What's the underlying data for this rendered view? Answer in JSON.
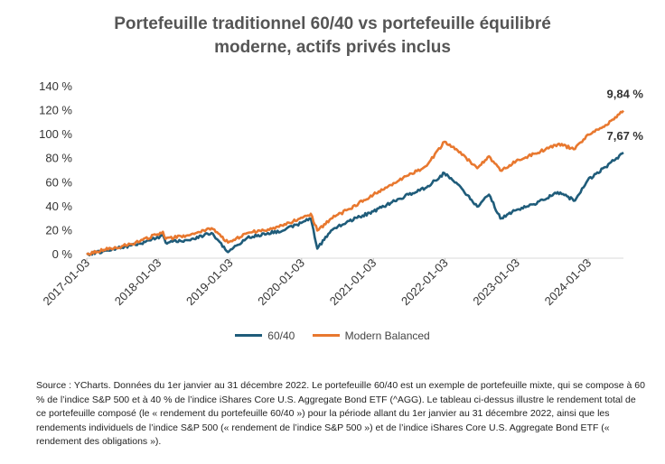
{
  "title_line1": "Portefeuille traditionnel 60/40 vs portefeuille équilibré",
  "title_line2": "moderne, actifs privés inclus",
  "source_note": "Source : YCharts. Données du 1er janvier au 31 décembre 2022. Le portefeuille 60/40 est un exemple de portefeuille mixte, qui se compose à 60 % de l’indice S&P 500 et à 40 % de l’indice iShares Core U.S. Aggregate Bond ETF (^AGG). Le tableau ci-dessus illustre le rendement total de ce portefeuille composé (le « rendement du portefeuille 60/40 ») pour la période allant du 1er janvier au 31 décembre 2022, ainsi que les rendements individuels de l’indice S&P 500 (« rendement de l’indice S&P 500 ») et de l’indice iShares Core U.S. Aggregate Bond ETF (« rendement des obligations »).",
  "chart_data": {
    "type": "line",
    "x_ticks": [
      "2017-01-03",
      "2018-01-03",
      "2019-01-03",
      "2020-01-03",
      "2021-01-03",
      "2022-01-03",
      "2023-01-03",
      "2024-01-03"
    ],
    "y_ticks": [
      "0 %",
      "20 %",
      "40 %",
      "60 %",
      "80 %",
      "100 %",
      "120 %",
      "140 %"
    ],
    "ylim": [
      0,
      140
    ],
    "xlim": [
      "2017-01-03",
      "2024-06-30"
    ],
    "legend_position": "bottom",
    "grid": false,
    "end_labels": [
      {
        "series": "Modern Balanced",
        "text": "9,84 %"
      },
      {
        "series": "60/40",
        "text": "7,67 %"
      }
    ],
    "series": [
      {
        "name": "60/40",
        "color": "#1f5c7a",
        "points": [
          [
            "2017-01-03",
            0
          ],
          [
            "2017-04-01",
            3
          ],
          [
            "2017-07-01",
            6
          ],
          [
            "2017-10-01",
            9
          ],
          [
            "2018-01-26",
            16
          ],
          [
            "2018-02-09",
            10
          ],
          [
            "2018-06-01",
            12
          ],
          [
            "2018-10-01",
            18
          ],
          [
            "2018-12-24",
            2
          ],
          [
            "2019-04-01",
            14
          ],
          [
            "2019-07-15",
            18
          ],
          [
            "2019-10-01",
            20
          ],
          [
            "2020-02-19",
            30
          ],
          [
            "2020-03-23",
            5
          ],
          [
            "2020-06-01",
            20
          ],
          [
            "2020-09-01",
            28
          ],
          [
            "2021-01-03",
            36
          ],
          [
            "2021-04-01",
            43
          ],
          [
            "2021-07-01",
            50
          ],
          [
            "2021-10-01",
            56
          ],
          [
            "2021-12-31",
            68
          ],
          [
            "2022-03-01",
            60
          ],
          [
            "2022-06-16",
            40
          ],
          [
            "2022-08-15",
            50
          ],
          [
            "2022-10-12",
            30
          ],
          [
            "2022-12-31",
            37
          ],
          [
            "2023-04-01",
            42
          ],
          [
            "2023-07-31",
            52
          ],
          [
            "2023-10-27",
            45
          ],
          [
            "2023-12-31",
            62
          ],
          [
            "2024-03-31",
            73
          ],
          [
            "2024-06-30",
            85
          ]
        ]
      },
      {
        "name": "Modern Balanced",
        "color": "#e8782f",
        "points": [
          [
            "2017-01-03",
            0
          ],
          [
            "2017-04-01",
            4
          ],
          [
            "2017-07-01",
            7
          ],
          [
            "2017-10-01",
            11
          ],
          [
            "2018-01-26",
            19
          ],
          [
            "2018-02-09",
            13
          ],
          [
            "2018-06-01",
            16
          ],
          [
            "2018-10-01",
            22
          ],
          [
            "2018-12-24",
            10
          ],
          [
            "2019-04-01",
            18
          ],
          [
            "2019-07-15",
            21
          ],
          [
            "2019-10-01",
            24
          ],
          [
            "2020-02-19",
            34
          ],
          [
            "2020-03-23",
            20
          ],
          [
            "2020-06-01",
            30
          ],
          [
            "2020-09-01",
            38
          ],
          [
            "2021-01-03",
            50
          ],
          [
            "2021-04-01",
            58
          ],
          [
            "2021-07-01",
            66
          ],
          [
            "2021-10-01",
            74
          ],
          [
            "2021-12-31",
            94
          ],
          [
            "2022-03-01",
            88
          ],
          [
            "2022-06-16",
            72
          ],
          [
            "2022-08-15",
            82
          ],
          [
            "2022-10-12",
            70
          ],
          [
            "2022-12-31",
            78
          ],
          [
            "2023-04-01",
            84
          ],
          [
            "2023-07-31",
            92
          ],
          [
            "2023-10-27",
            88
          ],
          [
            "2023-12-31",
            100
          ],
          [
            "2024-03-31",
            108
          ],
          [
            "2024-06-30",
            120
          ]
        ]
      }
    ]
  }
}
